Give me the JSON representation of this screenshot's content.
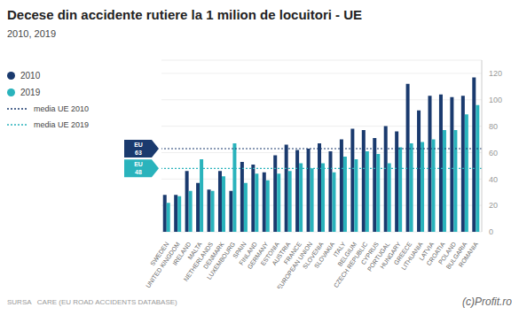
{
  "chart_data": {
    "type": "bar",
    "title": "Decese din accidente rutiere la 1 milion de locuitori - UE",
    "subtitle": "2010, 2019",
    "categories": [
      "SWEDEN",
      "UNITED KINGDOM",
      "IRELAND",
      "MALTA",
      "NETHERLANDS",
      "DENMARK",
      "LUXEMBOURG",
      "SPAIN",
      "FINLAND",
      "GERMANY",
      "ESTONIA",
      "AUSTRIA",
      "FRANCE",
      "EUROPEAN UNION",
      "SLOVENIA",
      "SLOVAKIA",
      "ITALY",
      "BELGIUM",
      "CZECH REPUBLIC",
      "CYPRUS",
      "PORTUGAL",
      "HUNGARY",
      "GREECE",
      "LITHUANIA",
      "LATVIA",
      "CROATIA",
      "POLAND",
      "BULGARIA",
      "ROMANIA"
    ],
    "series": [
      {
        "name": "2010",
        "color": "#1a3a6e",
        "values": [
          28,
          28,
          46,
          37,
          32,
          46,
          31,
          53,
          51,
          45,
          58,
          66,
          62,
          63,
          67,
          61,
          70,
          78,
          77,
          71,
          80,
          76,
          112,
          92,
          103,
          104,
          102,
          103,
          117
        ]
      },
      {
        "name": "2019",
        "color": "#2ab3bc",
        "values": [
          22,
          27,
          31,
          55,
          31,
          42,
          67,
          37,
          44,
          39,
          44,
          46,
          52,
          48,
          52,
          45,
          57,
          55,
          61,
          59,
          52,
          64,
          67,
          68,
          70,
          77,
          77,
          89,
          96
        ]
      }
    ],
    "reference_lines": [
      {
        "name": "media UE 2010",
        "annotation": "EU",
        "value": 63,
        "color": "#1a3a6e",
        "line_style": "dotted"
      },
      {
        "name": "media UE 2019",
        "annotation": "EU",
        "value": 48,
        "color": "#2ab3bc",
        "line_style": "dotted"
      }
    ],
    "ylim": [
      0,
      130
    ],
    "yticks": [
      0,
      20,
      40,
      60,
      80,
      100,
      120
    ],
    "grid": true,
    "source": "SURSA   CARE (EU ROAD ACCIDENTS DATABASE)",
    "credit": "(c)Profit.ro"
  }
}
